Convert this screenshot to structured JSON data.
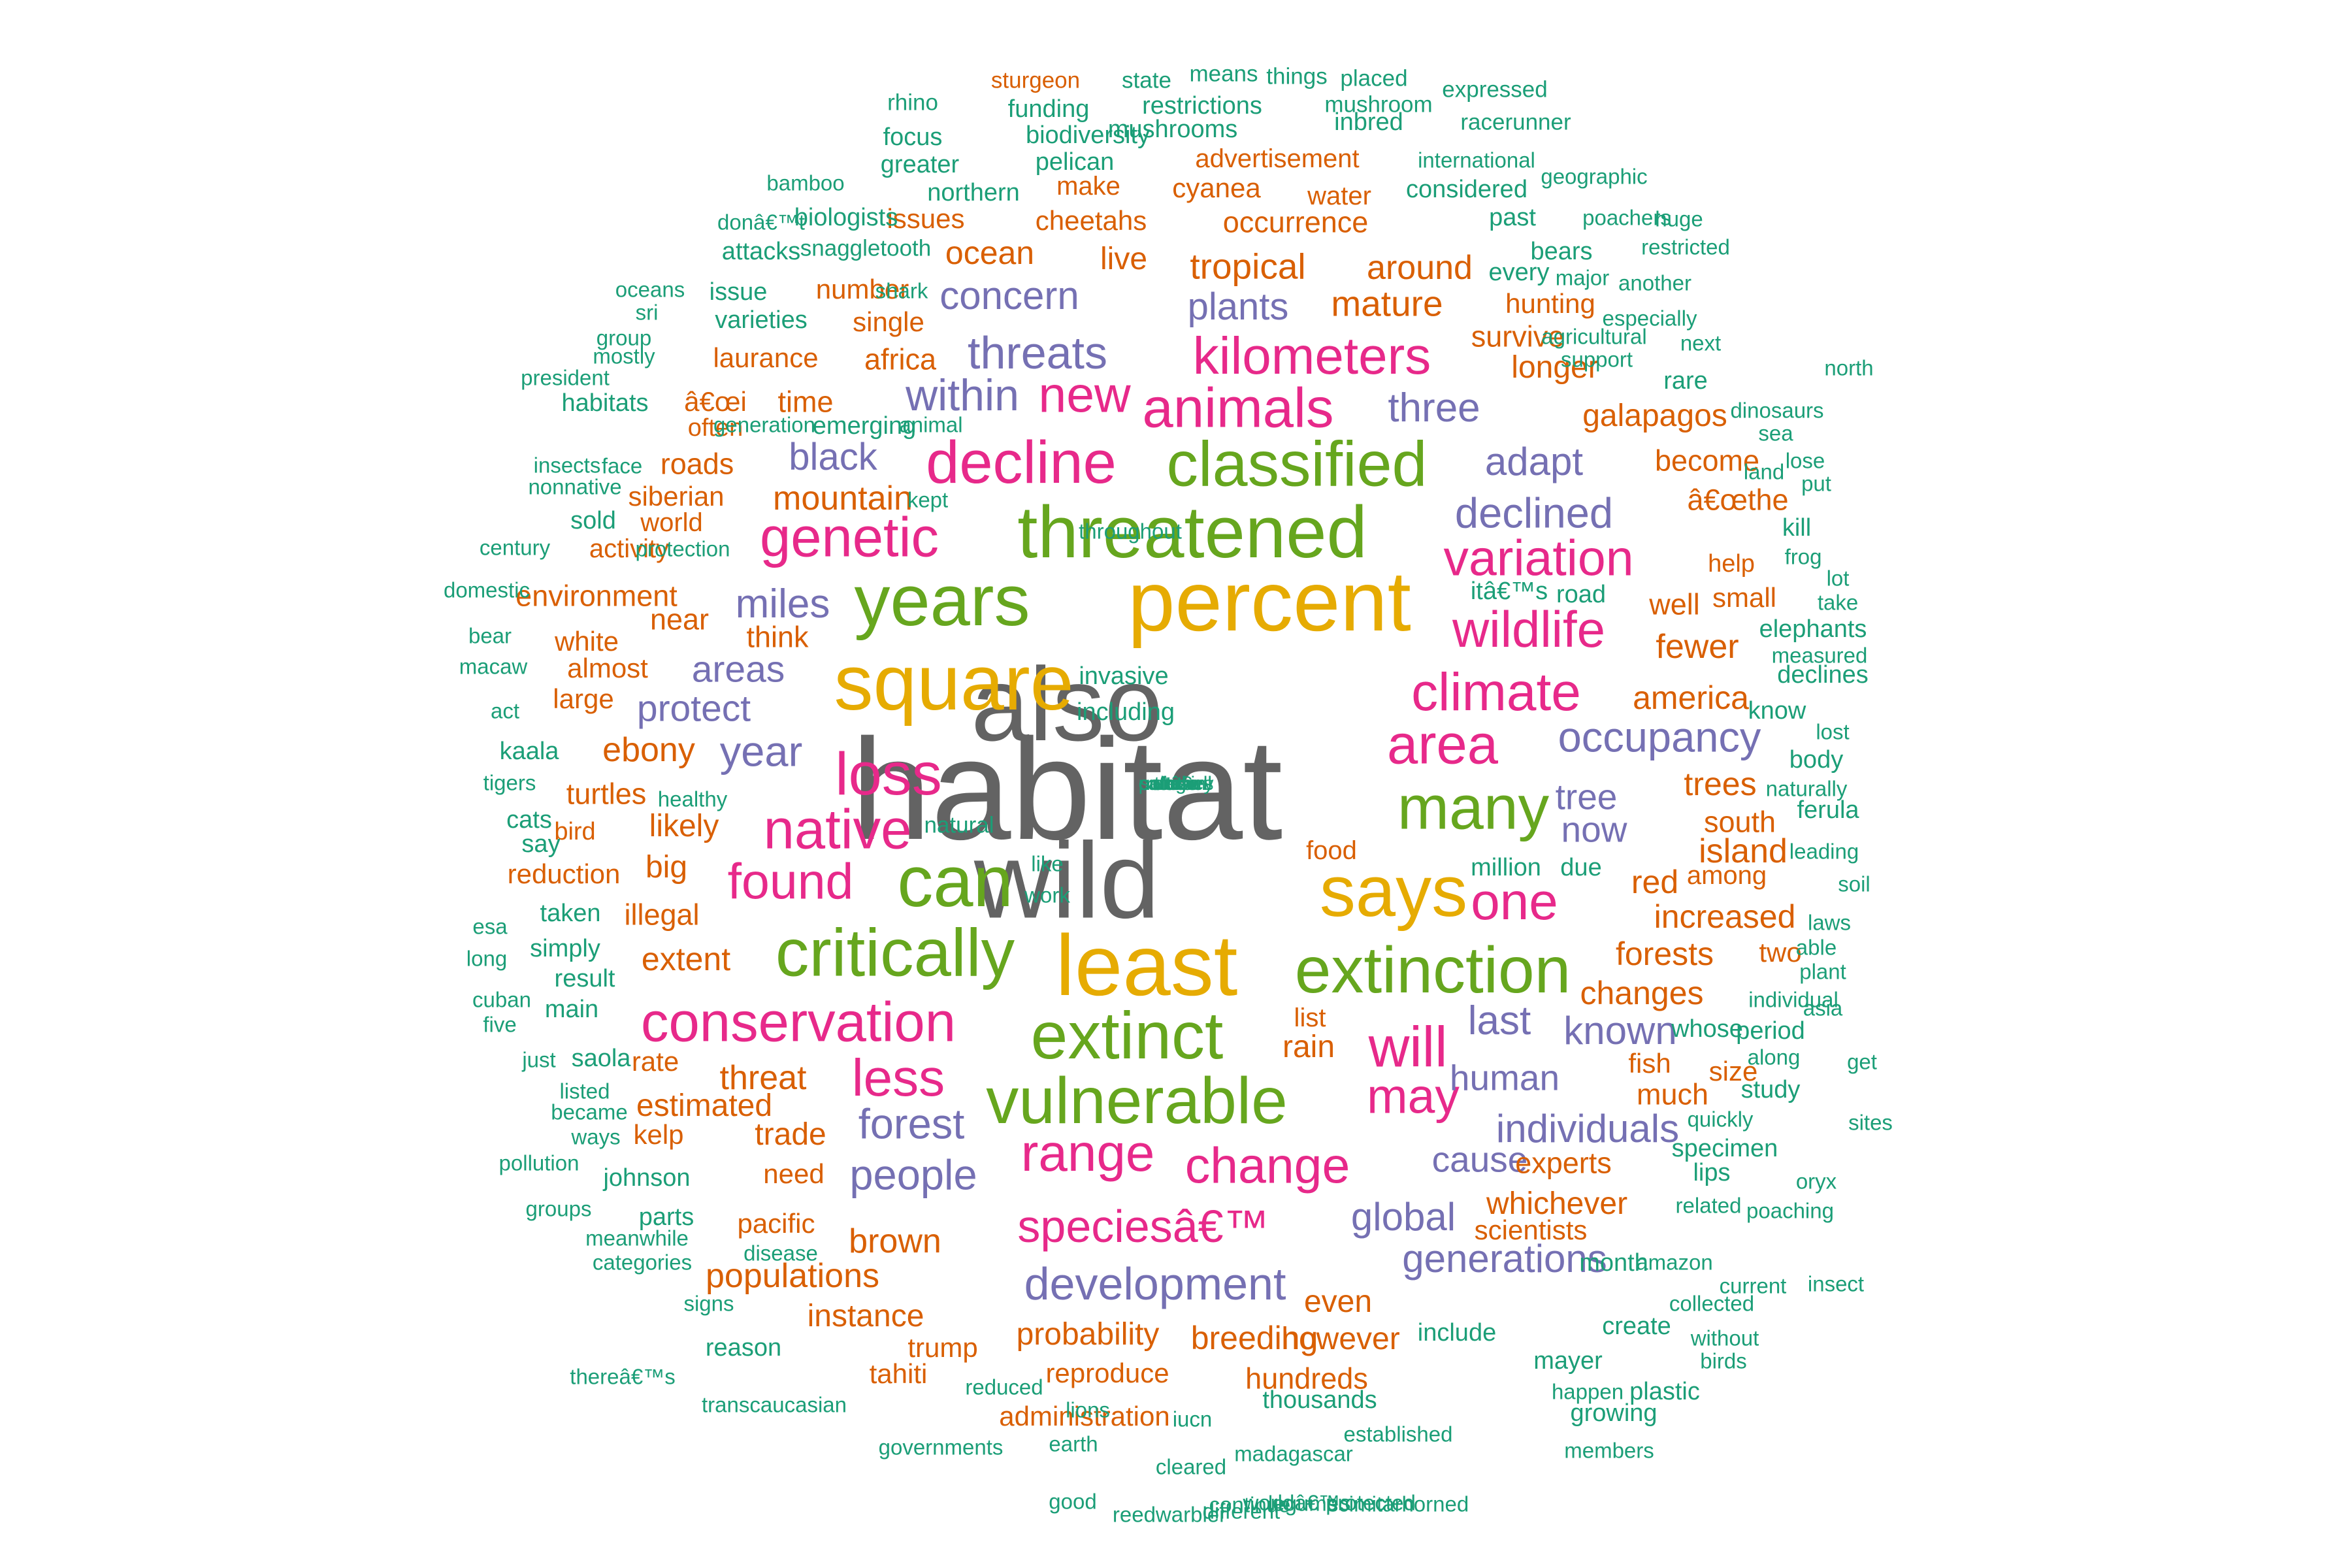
{
  "colors": {
    "gray": "#636363",
    "gold": "#e6ab02",
    "green": "#66a61e",
    "pink": "#e7298a",
    "purple": "#7570b3",
    "orange": "#d95f02",
    "teal": "#1b9e77"
  },
  "words": [
    {
      "text": "habitat",
      "color": "gray"
    },
    {
      "text": "also",
      "color": "gray"
    },
    {
      "text": "wild",
      "color": "gray"
    },
    {
      "text": "percent",
      "color": "gold"
    },
    {
      "text": "square",
      "color": "gold"
    },
    {
      "text": "least",
      "color": "gold"
    },
    {
      "text": "says",
      "color": "gold"
    },
    {
      "text": "can",
      "color": "green"
    },
    {
      "text": "threatened",
      "color": "green"
    },
    {
      "text": "classified",
      "color": "green"
    },
    {
      "text": "years",
      "color": "green"
    },
    {
      "text": "critically",
      "color": "green"
    },
    {
      "text": "extinct",
      "color": "green"
    },
    {
      "text": "extinction",
      "color": "green"
    },
    {
      "text": "vulnerable",
      "color": "green"
    },
    {
      "text": "many",
      "color": "green"
    },
    {
      "text": "decline",
      "color": "pink"
    },
    {
      "text": "animals",
      "color": "pink"
    },
    {
      "text": "genetic",
      "color": "pink"
    },
    {
      "text": "loss",
      "color": "pink"
    },
    {
      "text": "native",
      "color": "pink"
    },
    {
      "text": "found",
      "color": "pink"
    },
    {
      "text": "climate",
      "color": "pink"
    },
    {
      "text": "area",
      "color": "pink"
    },
    {
      "text": "wildlife",
      "color": "pink"
    },
    {
      "text": "variation",
      "color": "pink"
    },
    {
      "text": "kilometers",
      "color": "pink"
    },
    {
      "text": "new",
      "color": "pink"
    },
    {
      "text": "will",
      "color": "pink"
    },
    {
      "text": "one",
      "color": "pink"
    },
    {
      "text": "may",
      "color": "pink"
    },
    {
      "text": "conservation",
      "color": "pink"
    },
    {
      "text": "less",
      "color": "pink"
    },
    {
      "text": "range",
      "color": "pink"
    },
    {
      "text": "change",
      "color": "pink"
    },
    {
      "text": "speciesâ€™",
      "color": "pink"
    },
    {
      "text": "threats",
      "color": "purple"
    },
    {
      "text": "within",
      "color": "purple"
    },
    {
      "text": "concern",
      "color": "purple"
    },
    {
      "text": "plants",
      "color": "purple"
    },
    {
      "text": "three",
      "color": "purple"
    },
    {
      "text": "black",
      "color": "purple"
    },
    {
      "text": "declined",
      "color": "purple"
    },
    {
      "text": "adapt",
      "color": "purple"
    },
    {
      "text": "miles",
      "color": "purple"
    },
    {
      "text": "areas",
      "color": "purple"
    },
    {
      "text": "protect",
      "color": "purple"
    },
    {
      "text": "year",
      "color": "purple"
    },
    {
      "text": "occupancy",
      "color": "purple"
    },
    {
      "text": "tree",
      "color": "purple"
    },
    {
      "text": "now",
      "color": "purple"
    },
    {
      "text": "last",
      "color": "purple"
    },
    {
      "text": "known",
      "color": "purple"
    },
    {
      "text": "human",
      "color": "purple"
    },
    {
      "text": "forest",
      "color": "purple"
    },
    {
      "text": "individuals",
      "color": "purple"
    },
    {
      "text": "people",
      "color": "purple"
    },
    {
      "text": "cause",
      "color": "purple"
    },
    {
      "text": "global",
      "color": "purple"
    },
    {
      "text": "generations",
      "color": "purple"
    },
    {
      "text": "development",
      "color": "purple"
    },
    {
      "text": "advertisement",
      "color": "orange"
    },
    {
      "text": "make",
      "color": "orange"
    },
    {
      "text": "cyanea",
      "color": "orange"
    },
    {
      "text": "water",
      "color": "orange"
    },
    {
      "text": "issues",
      "color": "orange"
    },
    {
      "text": "cheetahs",
      "color": "orange"
    },
    {
      "text": "occurrence",
      "color": "orange"
    },
    {
      "text": "ocean",
      "color": "orange"
    },
    {
      "text": "live",
      "color": "orange"
    },
    {
      "text": "tropical",
      "color": "orange"
    },
    {
      "text": "around",
      "color": "orange"
    },
    {
      "text": "number",
      "color": "orange"
    },
    {
      "text": "mature",
      "color": "orange"
    },
    {
      "text": "hunting",
      "color": "orange"
    },
    {
      "text": "single",
      "color": "orange"
    },
    {
      "text": "survive",
      "color": "orange"
    },
    {
      "text": "laurance",
      "color": "orange"
    },
    {
      "text": "africa",
      "color": "orange"
    },
    {
      "text": "longer",
      "color": "orange"
    },
    {
      "text": "â€œi",
      "color": "orange"
    },
    {
      "text": "time",
      "color": "orange"
    },
    {
      "text": "galapagos",
      "color": "orange"
    },
    {
      "text": "often",
      "color": "orange"
    },
    {
      "text": "roads",
      "color": "orange"
    },
    {
      "text": "become",
      "color": "orange"
    },
    {
      "text": "siberian",
      "color": "orange"
    },
    {
      "text": "mountain",
      "color": "orange"
    },
    {
      "text": "â€œthe",
      "color": "orange"
    },
    {
      "text": "world",
      "color": "orange"
    },
    {
      "text": "activity",
      "color": "orange"
    },
    {
      "text": "environment",
      "color": "orange"
    },
    {
      "text": "help",
      "color": "orange"
    },
    {
      "text": "small",
      "color": "orange"
    },
    {
      "text": "well",
      "color": "orange"
    },
    {
      "text": "near",
      "color": "orange"
    },
    {
      "text": "think",
      "color": "orange"
    },
    {
      "text": "white",
      "color": "orange"
    },
    {
      "text": "fewer",
      "color": "orange"
    },
    {
      "text": "almost",
      "color": "orange"
    },
    {
      "text": "large",
      "color": "orange"
    },
    {
      "text": "america",
      "color": "orange"
    },
    {
      "text": "ebony",
      "color": "orange"
    },
    {
      "text": "trees",
      "color": "orange"
    },
    {
      "text": "turtles",
      "color": "orange"
    },
    {
      "text": "bird",
      "color": "orange"
    },
    {
      "text": "likely",
      "color": "orange"
    },
    {
      "text": "south",
      "color": "orange"
    },
    {
      "text": "island",
      "color": "orange"
    },
    {
      "text": "reduction",
      "color": "orange"
    },
    {
      "text": "big",
      "color": "orange"
    },
    {
      "text": "food",
      "color": "orange"
    },
    {
      "text": "red",
      "color": "orange"
    },
    {
      "text": "among",
      "color": "orange"
    },
    {
      "text": "illegal",
      "color": "orange"
    },
    {
      "text": "increased",
      "color": "orange"
    },
    {
      "text": "extent",
      "color": "orange"
    },
    {
      "text": "forests",
      "color": "orange"
    },
    {
      "text": "two",
      "color": "orange"
    },
    {
      "text": "changes",
      "color": "orange"
    },
    {
      "text": "list",
      "color": "orange"
    },
    {
      "text": "rain",
      "color": "orange"
    },
    {
      "text": "fish",
      "color": "orange"
    },
    {
      "text": "rate",
      "color": "orange"
    },
    {
      "text": "size",
      "color": "orange"
    },
    {
      "text": "threat",
      "color": "orange"
    },
    {
      "text": "much",
      "color": "orange"
    },
    {
      "text": "estimated",
      "color": "orange"
    },
    {
      "text": "kelp",
      "color": "orange"
    },
    {
      "text": "trade",
      "color": "orange"
    },
    {
      "text": "need",
      "color": "orange"
    },
    {
      "text": "experts",
      "color": "orange"
    },
    {
      "text": "whichever",
      "color": "orange"
    },
    {
      "text": "pacific",
      "color": "orange"
    },
    {
      "text": "scientists",
      "color": "orange"
    },
    {
      "text": "brown",
      "color": "orange"
    },
    {
      "text": "populations",
      "color": "orange"
    },
    {
      "text": "even",
      "color": "orange"
    },
    {
      "text": "instance",
      "color": "orange"
    },
    {
      "text": "probability",
      "color": "orange"
    },
    {
      "text": "breeding",
      "color": "orange"
    },
    {
      "text": "however",
      "color": "orange"
    },
    {
      "text": "trump",
      "color": "orange"
    },
    {
      "text": "tahiti",
      "color": "orange"
    },
    {
      "text": "reproduce",
      "color": "orange"
    },
    {
      "text": "hundreds",
      "color": "orange"
    },
    {
      "text": "administration",
      "color": "orange"
    },
    {
      "text": "sturgeon",
      "color": "orange"
    },
    {
      "text": "state",
      "color": "teal"
    },
    {
      "text": "means",
      "color": "teal"
    },
    {
      "text": "things",
      "color": "teal"
    },
    {
      "text": "placed",
      "color": "teal"
    },
    {
      "text": "expressed",
      "color": "teal"
    },
    {
      "text": "rhino",
      "color": "teal"
    },
    {
      "text": "funding",
      "color": "teal"
    },
    {
      "text": "restrictions",
      "color": "teal"
    },
    {
      "text": "mushroom",
      "color": "teal"
    },
    {
      "text": "inbred",
      "color": "teal"
    },
    {
      "text": "racerunner",
      "color": "teal"
    },
    {
      "text": "focus",
      "color": "teal"
    },
    {
      "text": "biodiversity",
      "color": "teal"
    },
    {
      "text": "mushrooms",
      "color": "teal"
    },
    {
      "text": "greater",
      "color": "teal"
    },
    {
      "text": "pelican",
      "color": "teal"
    },
    {
      "text": "international",
      "color": "teal"
    },
    {
      "text": "bamboo",
      "color": "teal"
    },
    {
      "text": "northern",
      "color": "teal"
    },
    {
      "text": "considered",
      "color": "teal"
    },
    {
      "text": "geographic",
      "color": "teal"
    },
    {
      "text": "donâ€™t",
      "color": "teal"
    },
    {
      "text": "biologists",
      "color": "teal"
    },
    {
      "text": "past",
      "color": "teal"
    },
    {
      "text": "poachers",
      "color": "teal"
    },
    {
      "text": "huge",
      "color": "teal"
    },
    {
      "text": "attacks",
      "color": "teal"
    },
    {
      "text": "snaggletooth",
      "color": "teal"
    },
    {
      "text": "bears",
      "color": "teal"
    },
    {
      "text": "restricted",
      "color": "teal"
    },
    {
      "text": "every",
      "color": "teal"
    },
    {
      "text": "major",
      "color": "teal"
    },
    {
      "text": "another",
      "color": "teal"
    },
    {
      "text": "oceans",
      "color": "teal"
    },
    {
      "text": "issue",
      "color": "teal"
    },
    {
      "text": "shark",
      "color": "teal"
    },
    {
      "text": "sri",
      "color": "teal"
    },
    {
      "text": "varieties",
      "color": "teal"
    },
    {
      "text": "especially",
      "color": "teal"
    },
    {
      "text": "group",
      "color": "teal"
    },
    {
      "text": "agricultural",
      "color": "teal"
    },
    {
      "text": "next",
      "color": "teal"
    },
    {
      "text": "mostly",
      "color": "teal"
    },
    {
      "text": "support",
      "color": "teal"
    },
    {
      "text": "north",
      "color": "teal"
    },
    {
      "text": "president",
      "color": "teal"
    },
    {
      "text": "rare",
      "color": "teal"
    },
    {
      "text": "dinosaurs",
      "color": "teal"
    },
    {
      "text": "habitats",
      "color": "teal"
    },
    {
      "text": "generation",
      "color": "teal"
    },
    {
      "text": "emerging",
      "color": "teal"
    },
    {
      "text": "animal",
      "color": "teal"
    },
    {
      "text": "sea",
      "color": "teal"
    },
    {
      "text": "insects",
      "color": "teal"
    },
    {
      "text": "face",
      "color": "teal"
    },
    {
      "text": "lose",
      "color": "teal"
    },
    {
      "text": "land",
      "color": "teal"
    },
    {
      "text": "nonnative",
      "color": "teal"
    },
    {
      "text": "put",
      "color": "teal"
    },
    {
      "text": "kept",
      "color": "teal"
    },
    {
      "text": "sold",
      "color": "teal"
    },
    {
      "text": "kill",
      "color": "teal"
    },
    {
      "text": "century",
      "color": "teal"
    },
    {
      "text": "protection",
      "color": "teal"
    },
    {
      "text": "throughout",
      "color": "teal"
    },
    {
      "text": "frog",
      "color": "teal"
    },
    {
      "text": "lot",
      "color": "teal"
    },
    {
      "text": "domestic",
      "color": "teal"
    },
    {
      "text": "itâ€™s",
      "color": "teal"
    },
    {
      "text": "road",
      "color": "teal"
    },
    {
      "text": "take",
      "color": "teal"
    },
    {
      "text": "bear",
      "color": "teal"
    },
    {
      "text": "elephants",
      "color": "teal"
    },
    {
      "text": "macaw",
      "color": "teal"
    },
    {
      "text": "measured",
      "color": "teal"
    },
    {
      "text": "invasive",
      "color": "teal"
    },
    {
      "text": "declines",
      "color": "teal"
    },
    {
      "text": "act",
      "color": "teal"
    },
    {
      "text": "including",
      "color": "teal"
    },
    {
      "text": "know",
      "color": "teal"
    },
    {
      "text": "lost",
      "color": "teal"
    },
    {
      "text": "kaala",
      "color": "teal"
    },
    {
      "text": "body",
      "color": "teal"
    },
    {
      "text": "tigers",
      "color": "teal"
    },
    {
      "text": "healthy",
      "color": "teal"
    },
    {
      "text": "naturally",
      "color": "teal"
    },
    {
      "text": "cats",
      "color": "teal"
    },
    {
      "text": "natural",
      "color": "teal"
    },
    {
      "text": "ferula",
      "color": "teal"
    },
    {
      "text": "say",
      "color": "teal"
    },
    {
      "text": "leading",
      "color": "teal"
    },
    {
      "text": "like",
      "color": "teal"
    },
    {
      "text": "million",
      "color": "teal"
    },
    {
      "text": "due",
      "color": "teal"
    },
    {
      "text": "soil",
      "color": "teal"
    },
    {
      "text": "work",
      "color": "teal"
    },
    {
      "text": "taken",
      "color": "teal"
    },
    {
      "text": "esa",
      "color": "teal"
    },
    {
      "text": "laws",
      "color": "teal"
    },
    {
      "text": "simply",
      "color": "teal"
    },
    {
      "text": "long",
      "color": "teal"
    },
    {
      "text": "able",
      "color": "teal"
    },
    {
      "text": "result",
      "color": "teal"
    },
    {
      "text": "plant",
      "color": "teal"
    },
    {
      "text": "cuban",
      "color": "teal"
    },
    {
      "text": "individual",
      "color": "teal"
    },
    {
      "text": "main",
      "color": "teal"
    },
    {
      "text": "asia",
      "color": "teal"
    },
    {
      "text": "five",
      "color": "teal"
    },
    {
      "text": "whose",
      "color": "teal"
    },
    {
      "text": "period",
      "color": "teal"
    },
    {
      "text": "just",
      "color": "teal"
    },
    {
      "text": "saola",
      "color": "teal"
    },
    {
      "text": "along",
      "color": "teal"
    },
    {
      "text": "get",
      "color": "teal"
    },
    {
      "text": "listed",
      "color": "teal"
    },
    {
      "text": "study",
      "color": "teal"
    },
    {
      "text": "became",
      "color": "teal"
    },
    {
      "text": "quickly",
      "color": "teal"
    },
    {
      "text": "sites",
      "color": "teal"
    },
    {
      "text": "ways",
      "color": "teal"
    },
    {
      "text": "specimen",
      "color": "teal"
    },
    {
      "text": "pollution",
      "color": "teal"
    },
    {
      "text": "lips",
      "color": "teal"
    },
    {
      "text": "johnson",
      "color": "teal"
    },
    {
      "text": "oryx",
      "color": "teal"
    },
    {
      "text": "groups",
      "color": "teal"
    },
    {
      "text": "related",
      "color": "teal"
    },
    {
      "text": "poaching",
      "color": "teal"
    },
    {
      "text": "parts",
      "color": "teal"
    },
    {
      "text": "meanwhile",
      "color": "teal"
    },
    {
      "text": "month",
      "color": "teal"
    },
    {
      "text": "amazon",
      "color": "teal"
    },
    {
      "text": "insect",
      "color": "teal"
    },
    {
      "text": "disease",
      "color": "teal"
    },
    {
      "text": "current",
      "color": "teal"
    },
    {
      "text": "categories",
      "color": "teal"
    },
    {
      "text": "collected",
      "color": "teal"
    },
    {
      "text": "signs",
      "color": "teal"
    },
    {
      "text": "create",
      "color": "teal"
    },
    {
      "text": "without",
      "color": "teal"
    },
    {
      "text": "reason",
      "color": "teal"
    },
    {
      "text": "birds",
      "color": "teal"
    },
    {
      "text": "mayer",
      "color": "teal"
    },
    {
      "text": "thereâ€™s",
      "color": "teal"
    },
    {
      "text": "include",
      "color": "teal"
    },
    {
      "text": "reduced",
      "color": "teal"
    },
    {
      "text": "happen",
      "color": "teal"
    },
    {
      "text": "plastic",
      "color": "teal"
    },
    {
      "text": "transcaucasian",
      "color": "teal"
    },
    {
      "text": "lions",
      "color": "teal"
    },
    {
      "text": "iucn",
      "color": "teal"
    },
    {
      "text": "thousands",
      "color": "teal"
    },
    {
      "text": "growing",
      "color": "teal"
    },
    {
      "text": "governments",
      "color": "teal"
    },
    {
      "text": "earth",
      "color": "teal"
    },
    {
      "text": "established",
      "color": "teal"
    },
    {
      "text": "madagascar",
      "color": "teal"
    },
    {
      "text": "members",
      "color": "teal"
    },
    {
      "text": "cleared",
      "color": "teal"
    },
    {
      "text": "good",
      "color": "teal"
    },
    {
      "text": "reedwarbler",
      "color": "teal"
    },
    {
      "text": "different",
      "color": "teal"
    },
    {
      "text": "worldâ€™s",
      "color": "teal"
    },
    {
      "text": "protected",
      "color": "teal"
    },
    {
      "text": "continue",
      "color": "teal"
    },
    {
      "text": "legume",
      "color": "teal"
    },
    {
      "text": "scimitarhorned",
      "color": "teal"
    },
    {
      "text": "softshell",
      "color": "teal"
    },
    {
      "text": "remain",
      "color": "teal"
    },
    {
      "text": "turtle",
      "color": "teal"
    },
    {
      "text": "category",
      "color": "teal"
    },
    {
      "text": "itâ€",
      "color": "teal"
    },
    {
      "text": "close",
      "color": "teal"
    },
    {
      "text": "union",
      "color": "teal"
    },
    {
      "text": "potatoes",
      "color": "teal"
    }
  ]
}
